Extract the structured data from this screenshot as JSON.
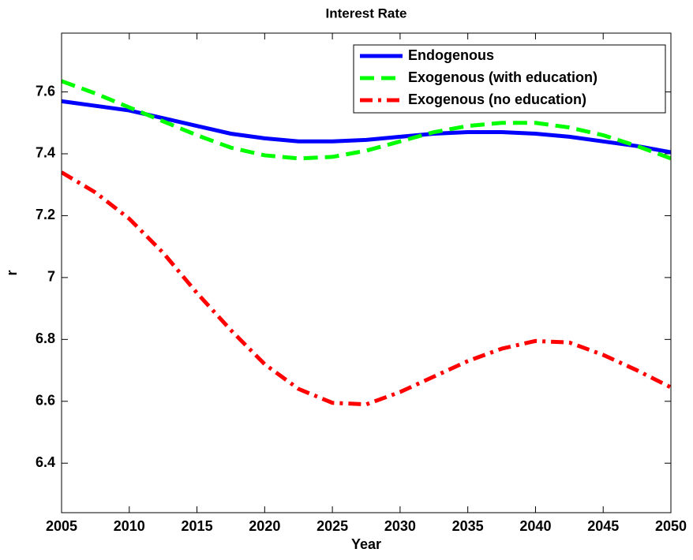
{
  "chart_data": {
    "type": "line",
    "title": "Interest Rate",
    "x_label": "Year",
    "y_label": "r",
    "x": [
      2005,
      2007.5,
      2010,
      2012.5,
      2015,
      2017.5,
      2020,
      2022.5,
      2025,
      2027.5,
      2030,
      2032.5,
      2035,
      2037.5,
      2040,
      2042.5,
      2045,
      2047.5,
      2050
    ],
    "series": [
      {
        "name": "Endogenous",
        "color": "#0000ff",
        "style": "solid",
        "values": [
          7.57,
          7.555,
          7.54,
          7.515,
          7.49,
          7.465,
          7.45,
          7.44,
          7.44,
          7.445,
          7.455,
          7.465,
          7.47,
          7.47,
          7.465,
          7.455,
          7.44,
          7.425,
          7.405
        ]
      },
      {
        "name": "Exogenous (with education)",
        "color": "#00ff00",
        "style": "dashed",
        "values": [
          7.635,
          7.595,
          7.55,
          7.505,
          7.46,
          7.42,
          7.395,
          7.385,
          7.39,
          7.41,
          7.44,
          7.47,
          7.49,
          7.5,
          7.5,
          7.485,
          7.46,
          7.425,
          7.385
        ]
      },
      {
        "name": "Exogenous (no education)",
        "color": "#ff0000",
        "style": "dashdot",
        "values": [
          7.34,
          7.275,
          7.19,
          7.08,
          6.95,
          6.83,
          6.72,
          6.64,
          6.595,
          6.59,
          6.63,
          6.68,
          6.73,
          6.77,
          6.795,
          6.79,
          6.75,
          6.7,
          6.645
        ]
      }
    ],
    "xlim": [
      2005,
      2050
    ],
    "xticks": [
      2005,
      2010,
      2015,
      2020,
      2025,
      2030,
      2035,
      2040,
      2045,
      2050
    ],
    "ylim": [
      6.24,
      7.79
    ],
    "yticks": [
      6.4,
      6.6,
      6.8,
      7,
      7.2,
      7.4,
      7.6
    ],
    "grid": false,
    "legend": "northeast"
  }
}
